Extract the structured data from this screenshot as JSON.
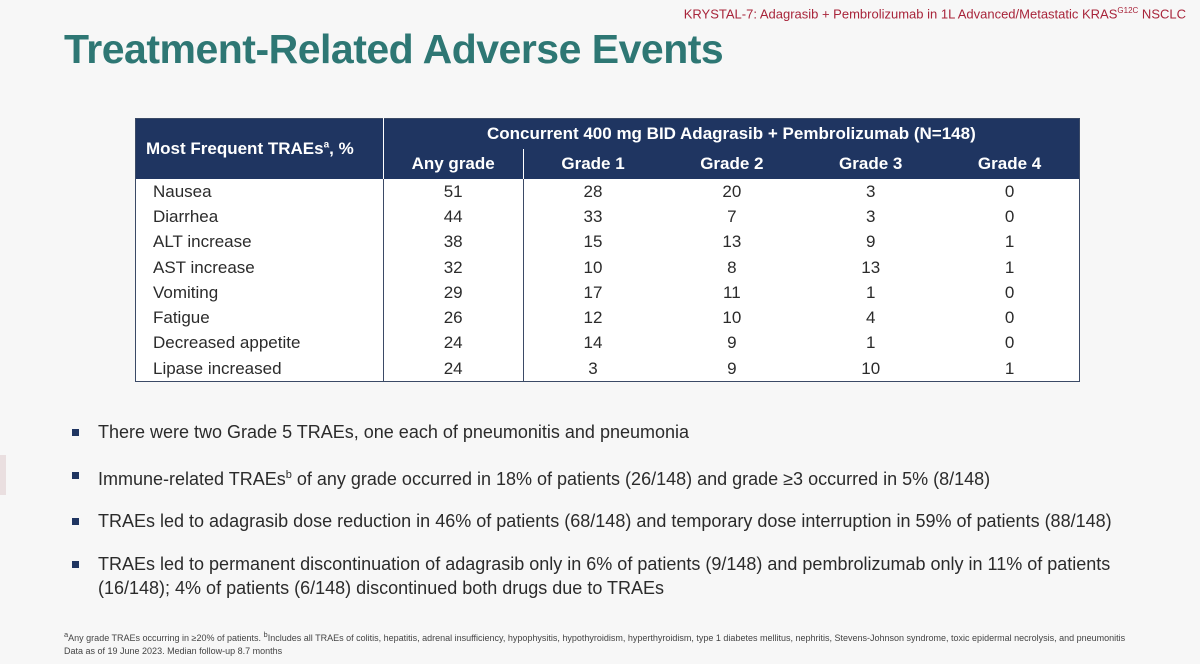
{
  "header": {
    "study_tag": "KRYSTAL-7: Adagrasib + Pembrolizumab in 1L Advanced/Metastatic KRAS",
    "study_tag_sup": "G12C",
    "study_tag_suffix": " NSCLC"
  },
  "title": "Treatment-Related Adverse Events",
  "table": {
    "row_header": "Most Frequent TRAEs",
    "row_header_sup": "a",
    "row_header_suffix": ", %",
    "group_header": "Concurrent 400 mg BID Adagrasib + Pembrolizumab (N=148)",
    "columns": [
      "Any grade",
      "Grade 1",
      "Grade 2",
      "Grade 3",
      "Grade 4"
    ],
    "rows": [
      {
        "name": "Nausea",
        "values": [
          "51",
          "28",
          "20",
          "3",
          "0"
        ]
      },
      {
        "name": "Diarrhea",
        "values": [
          "44",
          "33",
          "7",
          "3",
          "0"
        ]
      },
      {
        "name": "ALT increase",
        "values": [
          "38",
          "15",
          "13",
          "9",
          "1"
        ]
      },
      {
        "name": "AST increase",
        "values": [
          "32",
          "10",
          "8",
          "13",
          "1"
        ]
      },
      {
        "name": "Vomiting",
        "values": [
          "29",
          "17",
          "11",
          "1",
          "0"
        ]
      },
      {
        "name": "Fatigue",
        "values": [
          "26",
          "12",
          "10",
          "4",
          "0"
        ]
      },
      {
        "name": "Decreased appetite",
        "values": [
          "24",
          "14",
          "9",
          "1",
          "0"
        ]
      },
      {
        "name": "Lipase increased",
        "values": [
          "24",
          "3",
          "9",
          "10",
          "1"
        ]
      }
    ]
  },
  "bullets": [
    {
      "pre": "There were two Grade 5 TRAEs, one each of pneumonitis and pneumonia",
      "sup": "",
      "post": ""
    },
    {
      "pre": "Immune-related TRAEs",
      "sup": "b",
      "post": " of any grade occurred in 18% of patients (26/148) and grade ≥3 occurred in 5% (8/148)"
    },
    {
      "pre": "TRAEs led to adagrasib dose reduction in 46% of patients (68/148) and temporary dose interruption in 59% of patients (88/148)",
      "sup": "",
      "post": ""
    },
    {
      "pre": "TRAEs led to permanent discontinuation of adagrasib only in 6% of patients (9/148) and pembrolizumab only in 11% of patients (16/148); 4% of patients (6/148) discontinued both drugs due to TRAEs",
      "sup": "",
      "post": ""
    }
  ],
  "footnotes": {
    "a_sup": "a",
    "a_text": "Any grade TRAEs occurring in ≥20% of patients. ",
    "b_sup": "b",
    "b_text": "Includes all TRAEs of colitis, hepatitis, adrenal insufficiency, hypophysitis, hypothyroidism, hyperthyroidism, type 1 diabetes mellitus, nephritis, Stevens-Johnson syndrome, toxic epidermal necrolysis, and pneumonitis",
    "line2": "Data as of 19 June 2023. Median follow-up 8.7 months"
  },
  "colors": {
    "title": "#2e7774",
    "table_header": "#1f3561",
    "study_tag": "#a8243a"
  }
}
